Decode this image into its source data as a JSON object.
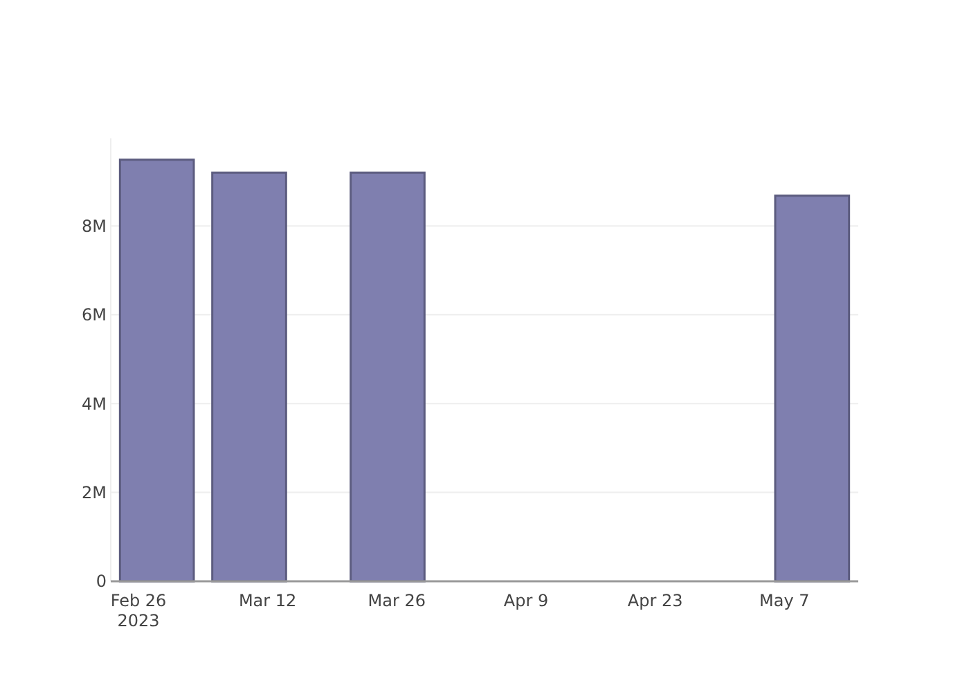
{
  "chart_data": {
    "type": "bar",
    "x": [
      "2023-02-28",
      "2023-03-10",
      "2023-03-25",
      "2023-05-10"
    ],
    "values": [
      9490000,
      9200000,
      9200000,
      8680000
    ],
    "color": "#7f7faf",
    "xlim": [
      "2023-02-23",
      "2023-05-15"
    ],
    "xticks": [
      {
        "value": "2023-02-26",
        "label": "Feb 26\n2023"
      },
      {
        "value": "2023-03-12",
        "label": "Mar 12"
      },
      {
        "value": "2023-03-26",
        "label": "Mar 26"
      },
      {
        "value": "2023-04-09",
        "label": "Apr 9"
      },
      {
        "value": "2023-04-23",
        "label": "Apr 23"
      },
      {
        "value": "2023-05-07",
        "label": "May 7"
      }
    ],
    "ylim": [
      0,
      9970000
    ],
    "yticks": [
      0,
      {
        "value": 2000000,
        "label": "2M"
      },
      {
        "value": 4000000,
        "label": "4M"
      },
      {
        "value": 6000000,
        "label": "6M"
      },
      {
        "value": 8000000,
        "label": "8M"
      }
    ],
    "grid": "y"
  }
}
